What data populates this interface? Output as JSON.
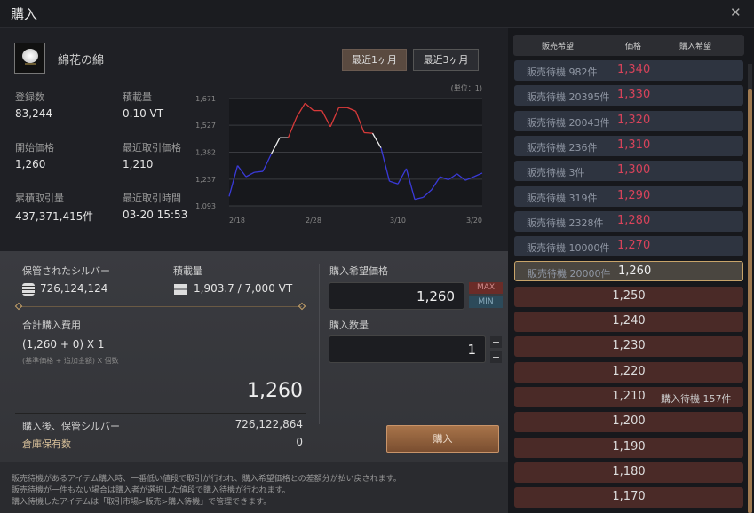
{
  "window": {
    "title": "購入",
    "close_icon": "close-icon"
  },
  "item": {
    "name": "綿花の綿",
    "icon": "cotton-icon"
  },
  "period_buttons": [
    "最近1ヶ月",
    "最近3ヶ月"
  ],
  "stats": [
    {
      "label": "登録数",
      "value": "83,244"
    },
    {
      "label": "積載量",
      "value": "0.10 VT"
    },
    {
      "label": "開始価格",
      "value": "1,260"
    },
    {
      "label": "最近取引価格",
      "value": "1,210"
    },
    {
      "label": "累積取引量",
      "value": "437,371,415件"
    },
    {
      "label": "最近取引時間",
      "value": "03-20 15:53"
    }
  ],
  "chart_data": {
    "type": "line",
    "unit_label": "(単位：1)",
    "ylim": [
      1093,
      1671
    ],
    "yticks": [
      "1,671",
      "1,527",
      "1,382",
      "1,237",
      "1,093"
    ],
    "ytick_values": [
      1671,
      1527,
      1382,
      1237,
      1093
    ],
    "xticks": [
      "2/18",
      "2/28",
      "3/10",
      "3/20"
    ],
    "x": [
      "2/18",
      "2/19",
      "2/20",
      "2/21",
      "2/22",
      "2/23",
      "2/24",
      "2/25",
      "2/26",
      "2/27",
      "2/28",
      "3/1",
      "3/2",
      "3/3",
      "3/4",
      "3/5",
      "3/6",
      "3/7",
      "3/8",
      "3/9",
      "3/10",
      "3/11",
      "3/12",
      "3/13",
      "3/14",
      "3/15",
      "3/16",
      "3/17",
      "3/18",
      "3/19",
      "3/20"
    ],
    "values": [
      1144,
      1310,
      1250,
      1274,
      1279,
      1373,
      1460,
      1460,
      1571,
      1646,
      1606,
      1606,
      1519,
      1622,
      1622,
      1603,
      1487,
      1484,
      1405,
      1226,
      1211,
      1294,
      1128,
      1139,
      1180,
      1250,
      1234,
      1266,
      1231,
      1250,
      1270
    ],
    "colors": {
      "high": "#d83a3a",
      "mid": "#f0f0f0",
      "low": "#3a3ad8"
    }
  },
  "storage": {
    "silver_label": "保管されたシルバー",
    "silver_value": "726,124,124",
    "weight_label": "積載量",
    "weight_value": "1,903.7 / 7,000 VT"
  },
  "cost": {
    "label": "合計購入費用",
    "formula": "(1,260 + 0) X 1",
    "formula_hint": "(基準価格 + 追加金額) X 個数",
    "total": "1,260"
  },
  "after": {
    "label": "購入後、保管シルバー",
    "value": "726,122,864",
    "stock_label": "倉庫保有数",
    "stock_value": "0"
  },
  "order": {
    "price_label": "購入希望価格",
    "price_value": "1,260",
    "max": "MAX",
    "min": "MIN",
    "qty_label": "購入数量",
    "qty_value": "1",
    "plus": "+",
    "minus": "−",
    "buy_button": "購入"
  },
  "notes": [
    "販売待機があるアイテム購入時、一番低い値段で取引が行われ、購入希望価格との差額分が払い戻されます。",
    "販売待機が一件もない場合は購入者が選択した値段で購入待機が行われます。",
    "購入待機したアイテムは「取引市場>販売>購入待機」で管理できます。"
  ],
  "orderbook": {
    "headers": [
      "販売希望",
      "価格",
      "購入希望"
    ],
    "rows": [
      {
        "type": "sell",
        "qty": "販売待機 982件",
        "price": "1,340",
        "buy": ""
      },
      {
        "type": "sell",
        "qty": "販売待機 20395件",
        "price": "1,330",
        "buy": ""
      },
      {
        "type": "sell",
        "qty": "販売待機 20043件",
        "price": "1,320",
        "buy": ""
      },
      {
        "type": "sell",
        "qty": "販売待機 236件",
        "price": "1,310",
        "buy": ""
      },
      {
        "type": "sell",
        "qty": "販売待機 3件",
        "price": "1,300",
        "buy": ""
      },
      {
        "type": "sell",
        "qty": "販売待機 319件",
        "price": "1,290",
        "buy": ""
      },
      {
        "type": "sell",
        "qty": "販売待機 2328件",
        "price": "1,280",
        "buy": ""
      },
      {
        "type": "sell",
        "qty": "販売待機 10000件",
        "price": "1,270",
        "buy": ""
      },
      {
        "type": "cur",
        "qty": "販売待機 20000件",
        "price": "1,260",
        "buy": ""
      },
      {
        "type": "buy",
        "qty": "",
        "price": "1,250",
        "buy": ""
      },
      {
        "type": "buy",
        "qty": "",
        "price": "1,240",
        "buy": ""
      },
      {
        "type": "buy",
        "qty": "",
        "price": "1,230",
        "buy": ""
      },
      {
        "type": "buy",
        "qty": "",
        "price": "1,220",
        "buy": ""
      },
      {
        "type": "buy",
        "qty": "",
        "price": "1,210",
        "buy": "購入待機 157件"
      },
      {
        "type": "buy",
        "qty": "",
        "price": "1,200",
        "buy": ""
      },
      {
        "type": "buy",
        "qty": "",
        "price": "1,190",
        "buy": ""
      },
      {
        "type": "buy",
        "qty": "",
        "price": "1,180",
        "buy": ""
      },
      {
        "type": "buy",
        "qty": "",
        "price": "1,170",
        "buy": ""
      }
    ]
  }
}
